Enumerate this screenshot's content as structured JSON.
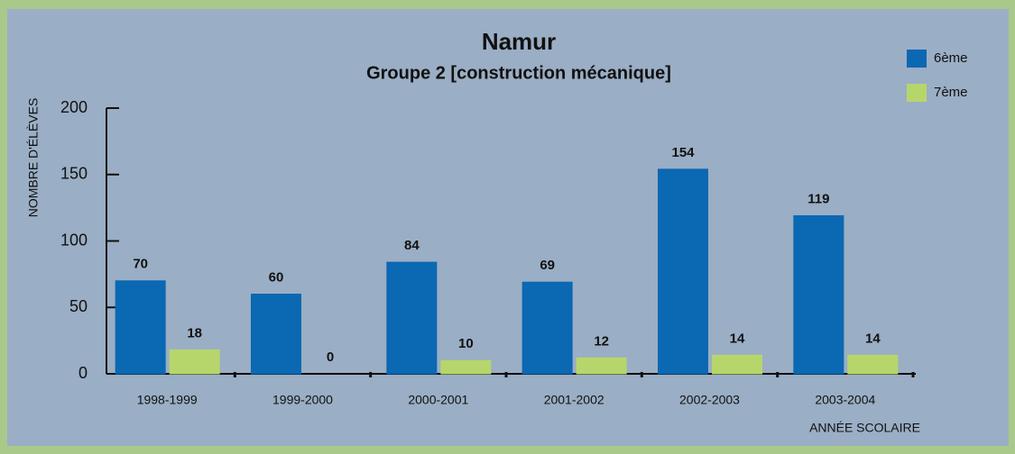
{
  "chart_data": {
    "type": "bar",
    "title": "Namur",
    "subtitle": "Groupe 2 [construction mécanique]",
    "y_label": "NOMBRE D'ÉLÈVES",
    "x_label": "ANNÉE SCOLAIRE",
    "categories": [
      "1998-1999",
      "1999-2000",
      "2000-2001",
      "2001-2002",
      "2002-2003",
      "2003-2004"
    ],
    "series": [
      {
        "name": "6ème",
        "color": "#0b68b3",
        "values": [
          70,
          60,
          84,
          69,
          154,
          119
        ]
      },
      {
        "name": "7ème",
        "color": "#b6d66c",
        "values": [
          18,
          0,
          10,
          12,
          14,
          14
        ]
      }
    ],
    "ylim": [
      0,
      200
    ],
    "yticks": [
      0,
      50,
      100,
      150,
      200
    ],
    "legend": "top-right"
  }
}
